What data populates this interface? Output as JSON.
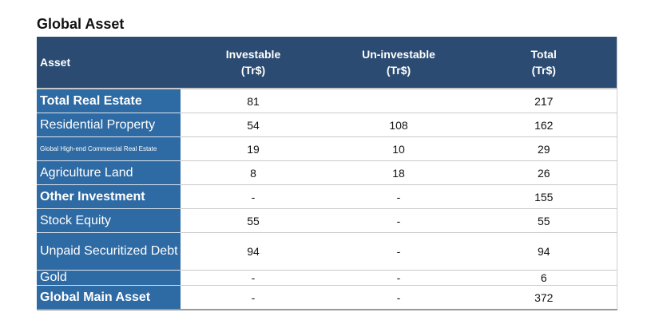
{
  "title": "Global Asset",
  "headers": {
    "asset": "Asset",
    "investable": [
      "Investable",
      "(Tr$)"
    ],
    "uninvestable": [
      "Un-investable",
      "(Tr$)"
    ],
    "total": [
      "Total",
      "(Tr$)"
    ]
  },
  "rows": [
    {
      "label": "Total Real Estate",
      "investable": "81",
      "uninvestable": "",
      "total": "217"
    },
    {
      "label": "Residential Property",
      "investable": "54",
      "uninvestable": "108",
      "total": "162"
    },
    {
      "label": "Global High-end Commercial Real Estate",
      "investable": "19",
      "uninvestable": "10",
      "total": "29"
    },
    {
      "label": "Agriculture Land",
      "investable": "8",
      "uninvestable": "18",
      "total": "26"
    },
    {
      "label": "Other Investment",
      "investable": "-",
      "uninvestable": "-",
      "total": "155"
    },
    {
      "label": "Stock Equity",
      "investable": "55",
      "uninvestable": "-",
      "total": "55"
    },
    {
      "label": "Unpaid Securitized Debt",
      "investable": "94",
      "uninvestable": "-",
      "total": "94"
    },
    {
      "label": "Gold",
      "investable": "-",
      "uninvestable": "-",
      "total": "6"
    },
    {
      "label": "Global Main Asset",
      "investable": "-",
      "uninvestable": "-",
      "total": "372"
    }
  ]
}
